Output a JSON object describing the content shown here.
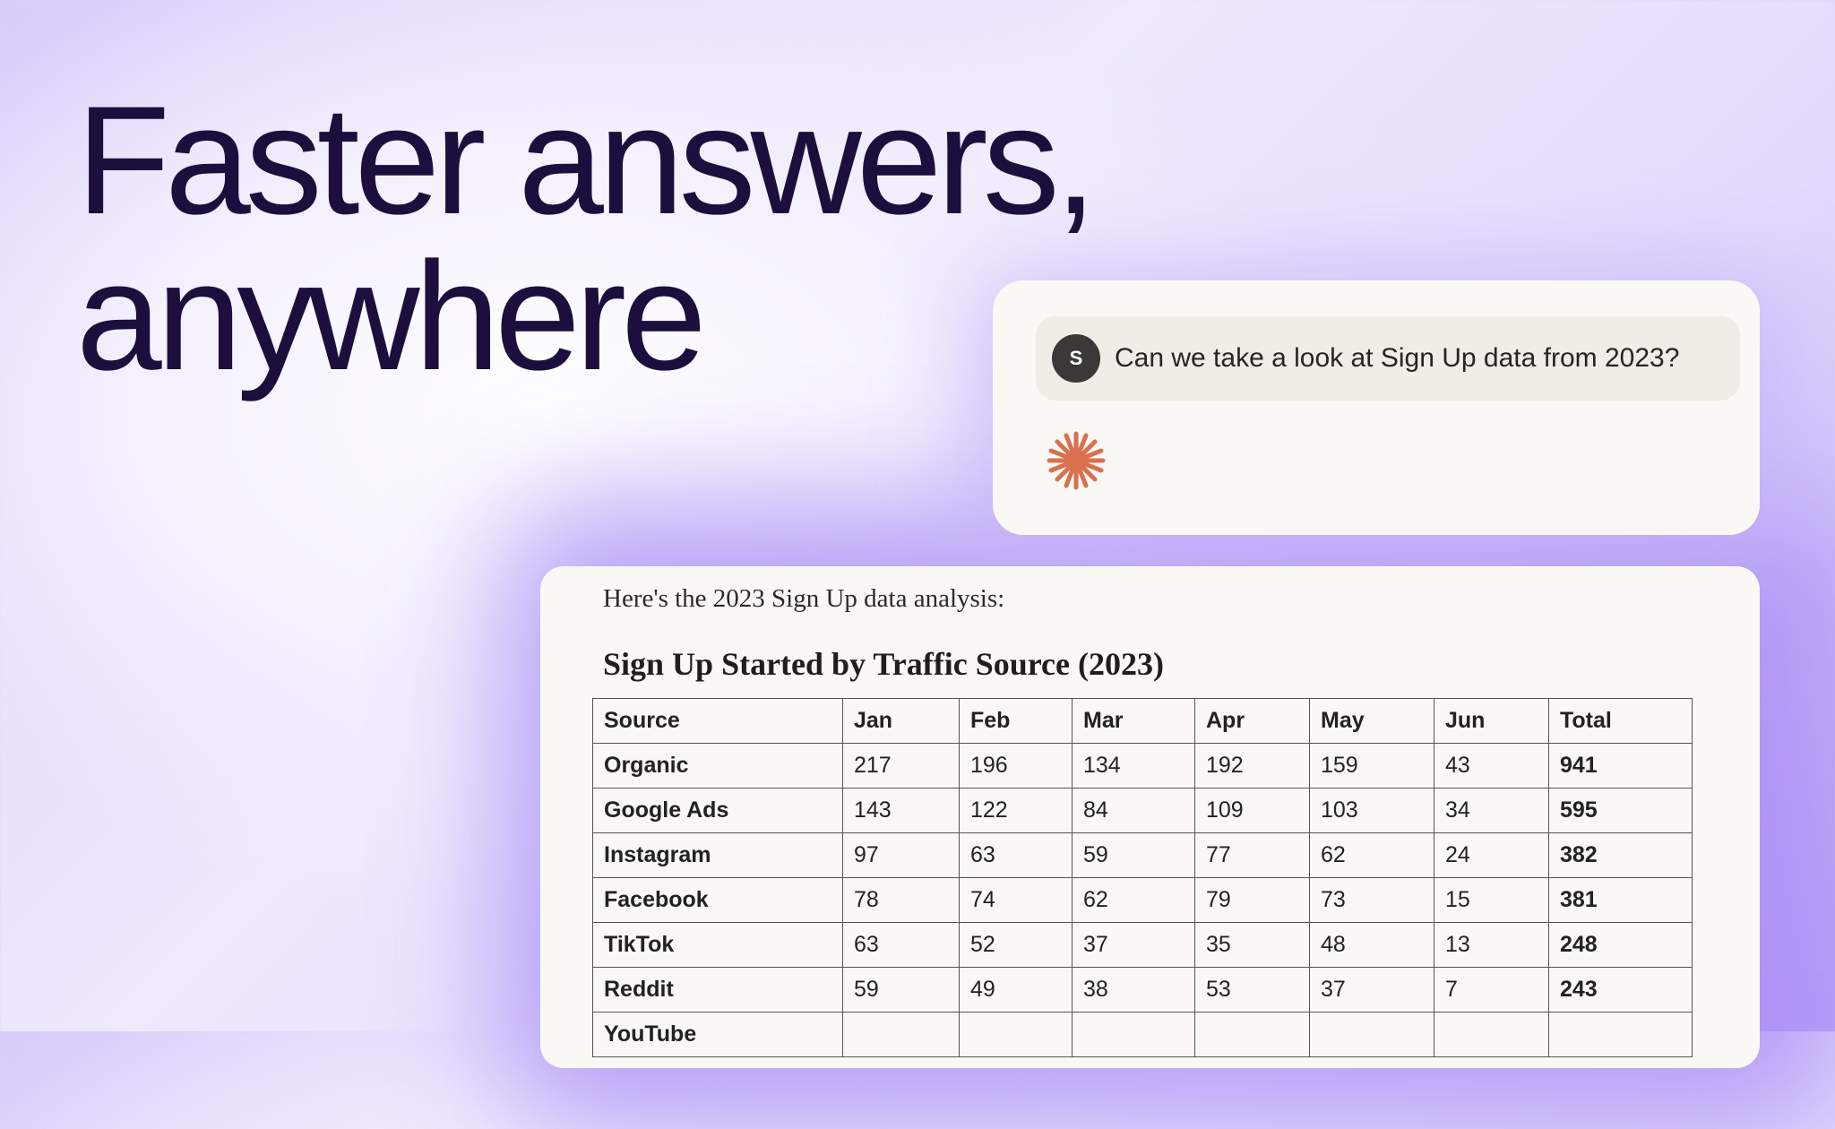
{
  "headline": {
    "line1": "Faster answers,",
    "line2": "anywhere"
  },
  "chat": {
    "avatar_initial": "S",
    "user_message": "Can we take a look at Sign Up data from 2023?",
    "assistant_icon": "orange-asterisk-icon",
    "accent": "#d9714e"
  },
  "response": {
    "intro": "Here's the 2023 Sign Up data analysis:",
    "title": "Sign Up Started by Traffic Source (2023)",
    "columns": [
      "Source",
      "Jan",
      "Feb",
      "Mar",
      "Apr",
      "May",
      "Jun",
      "Total"
    ],
    "rows": [
      [
        "Organic",
        "217",
        "196",
        "134",
        "192",
        "159",
        "43",
        "941"
      ],
      [
        "Google Ads",
        "143",
        "122",
        "84",
        "109",
        "103",
        "34",
        "595"
      ],
      [
        "Instagram",
        "97",
        "63",
        "59",
        "77",
        "62",
        "24",
        "382"
      ],
      [
        "Facebook",
        "78",
        "74",
        "62",
        "79",
        "73",
        "15",
        "381"
      ],
      [
        "TikTok",
        "63",
        "52",
        "37",
        "35",
        "48",
        "13",
        "248"
      ],
      [
        "Reddit",
        "59",
        "49",
        "38",
        "53",
        "37",
        "7",
        "243"
      ],
      [
        "YouTube",
        "",
        "",
        "",
        "",
        "",
        "",
        ""
      ]
    ]
  }
}
